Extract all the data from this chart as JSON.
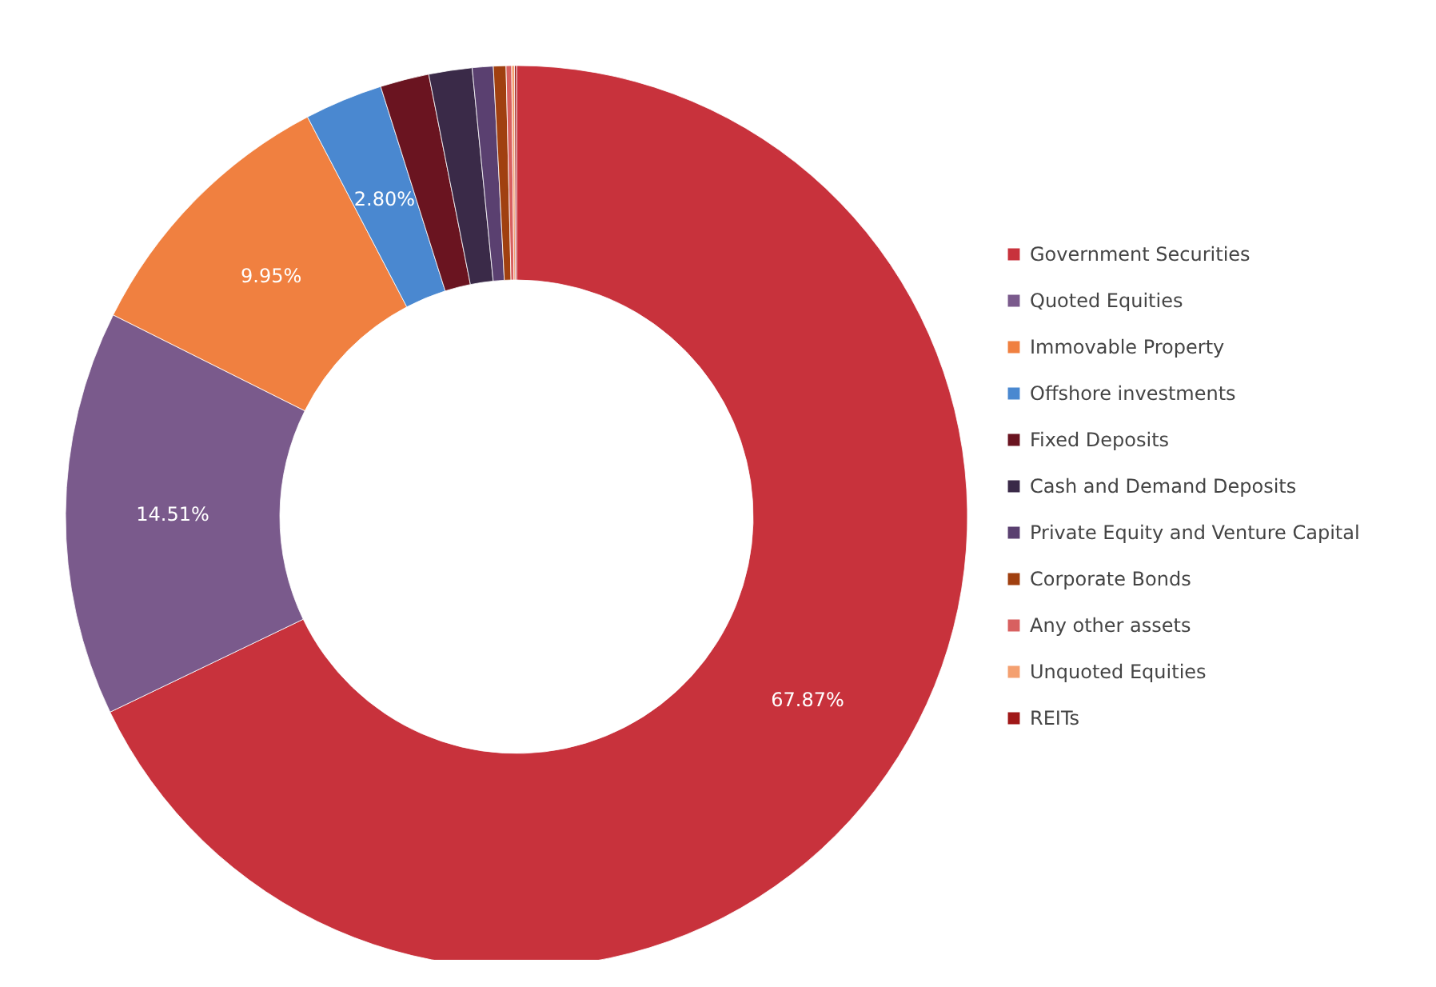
{
  "chart_data": {
    "type": "donut",
    "categories": [
      "Government Securities",
      "Quoted Equities",
      "Immovable Property",
      "Offshore investments",
      "Fixed Deposits",
      "Cash and Demand Deposits",
      "Private Equity and Venture Capital",
      "Corporate Bonds",
      "Any other assets",
      "Unquoted Equities",
      "REITs"
    ],
    "values": [
      67.87,
      14.51,
      9.95,
      2.8,
      1.75,
      1.55,
      0.75,
      0.45,
      0.2,
      0.1,
      0.07
    ],
    "colors": [
      "#c8323c",
      "#7a5a8c",
      "#f08040",
      "#4a88d0",
      "#6a1420",
      "#3a2a48",
      "#5a4070",
      "#a04010",
      "#d86060",
      "#f4a070",
      "#a01818"
    ],
    "value_labels": [
      "67.87%",
      "14.51%",
      "9.95%",
      "2.80%",
      null,
      null,
      null,
      null,
      null,
      null,
      null
    ],
    "legend": "right"
  }
}
